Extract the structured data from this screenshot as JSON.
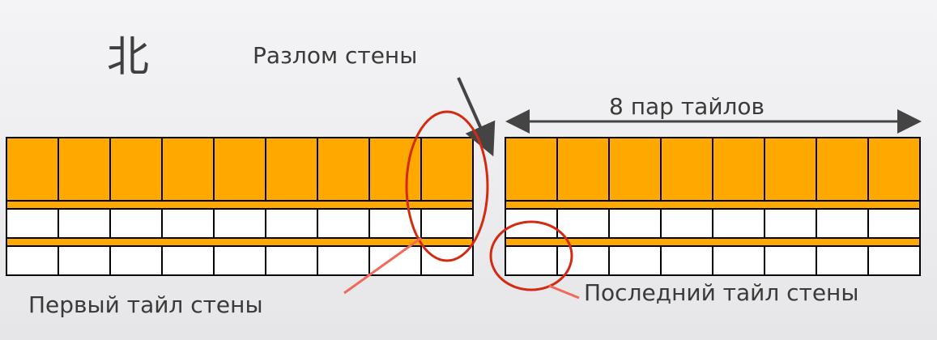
{
  "labels": {
    "direction": "北",
    "wall_break": "Разлом стены",
    "pairs": "8 пар тайлов",
    "first_tile": "Первый тайл стены",
    "last_tile": "Последний тайл стены"
  },
  "wall": {
    "left_segment_columns": 9,
    "right_segment_columns": 8
  },
  "colors": {
    "tile_top": "#ffa800",
    "tile_bottom": "#ffffff",
    "tile_border": "#000000",
    "highlight_ellipse": "#d42a10",
    "pointer_line": "#f06a5a",
    "arrow": "#444444",
    "text": "#3a3a3a"
  }
}
